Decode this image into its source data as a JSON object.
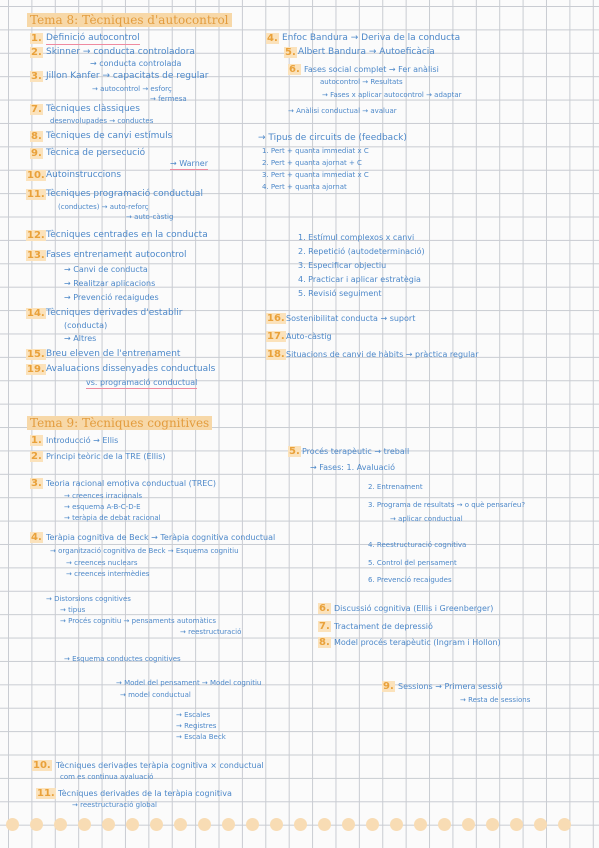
{
  "tema8": {
    "title": "Tema 8: Tècniques d'autocontrol",
    "left": [
      {
        "n": "1.",
        "text": "Definició autocontrol"
      },
      {
        "n": "2.",
        "text": "Skinner → conducta controladora"
      },
      {
        "sub": "→ conducta controlada"
      },
      {
        "n": "3.",
        "text": "Jillon Kanfer → capacitats de regular"
      },
      {
        "sub": "→ autocontrol → esforç"
      },
      {
        "sub": "→ fermesa"
      },
      {
        "n": "7.",
        "text": "Tècniques clàssiques"
      },
      {
        "sub": "desenvolupades → conductes"
      },
      {
        "n": "8.",
        "text": "Tècniques de canvi estímuls"
      },
      {
        "n": "9.",
        "text": "Tècnica de persecució"
      },
      {
        "sub": "→ Warner"
      },
      {
        "n": "10.",
        "text": "Autoinstruccions"
      },
      {
        "n": "11.",
        "text": "Tècniques programació conductual"
      },
      {
        "sub": "(conductes) → auto-reforç"
      },
      {
        "sub": "→ auto-càstig"
      },
      {
        "n": "12.",
        "text": "Tècniques centrades en la conducta"
      },
      {
        "n": "13.",
        "text": "Fases entrenament autocontrol"
      },
      {
        "sub": "→ Canvi de conducta"
      },
      {
        "sub": "→ Realitzar aplicacions"
      },
      {
        "sub": "→ Prevenció recaigudes"
      },
      {
        "n": "14.",
        "text": "Tècniques derivades d'establir"
      },
      {
        "sub": "(conducta)"
      },
      {
        "sub": "→ Altres"
      },
      {
        "n": "15.",
        "text": "Breu eleven de l'entrenament"
      },
      {
        "n": "19.",
        "text": "Avaluacions dissenyades conductuals"
      },
      {
        "sub": "vs. programació conductual"
      }
    ],
    "right": [
      {
        "n": "4.",
        "text": "Enfoc Bandura → Deriva de la conducta"
      },
      {
        "n": "5.",
        "text": "Albert Bandura → Autoeficàcia"
      },
      {
        "n": "6.",
        "text": "Fases social complet → Fer anàlisi"
      },
      {
        "sub": "autocontrol → Resultats"
      },
      {
        "sub": "→ Fases x aplicar autocontrol → adaptar"
      },
      {
        "sub": "→ Anàlisi conductual → avaluar"
      },
      {
        "n": "",
        "text": "→ Tipus de circuits de (feedback)"
      },
      {
        "sub": "1. Pert + quanta immediat x C"
      },
      {
        "sub": "2. Pert + quanta ajornat + C"
      },
      {
        "sub": "3. Pert + quanta immediat x C"
      },
      {
        "sub": "4. Pert + quanta ajornat"
      },
      {
        "sub": "1. Estímul complexos x canvi"
      },
      {
        "sub": "2. Repetició (autodeterminació)"
      },
      {
        "sub": "3. Especificar objectiu"
      },
      {
        "sub": "4. Practicar i aplicar estratègia"
      },
      {
        "sub": "5. Revisió seguiment"
      },
      {
        "n": "16.",
        "text": "Sostenibilitat conducta → suport"
      },
      {
        "n": "17.",
        "text": "Auto-càstig"
      },
      {
        "n": "18.",
        "text": "Situacions de canvi de hàbits → pràctica regular"
      }
    ]
  },
  "tema9": {
    "title": "Tema 9: Tècniques cognitives",
    "left": [
      {
        "n": "1.",
        "text": "Introducció → Ellis"
      },
      {
        "n": "2.",
        "text": "Principi teòric de la TRE (Ellis)"
      },
      {
        "n": "3.",
        "text": "Teoria racional emotiva conductual (TREC)"
      },
      {
        "sub": "→ creences irracionals"
      },
      {
        "sub": "→ esquema A-B-C-D-E"
      },
      {
        "sub": "→ teràpia de debat racional"
      },
      {
        "n": "4.",
        "text": "Teràpia cognitiva de Beck → Teràpia cognitiva conductual"
      },
      {
        "sub": "→ organització cognitiva de Beck → Esquema cognitiu"
      },
      {
        "sub": "→ creences nuclears"
      },
      {
        "sub": "→ creences intermèdies"
      },
      {
        "sub": "→ Distorsions cognitives"
      },
      {
        "sub": "→ tipus"
      },
      {
        "sub": "→ Procés cognitiu → pensaments automàtics"
      },
      {
        "sub": "→ reestructuració"
      },
      {
        "sub": "→ Esquema conductes cognitives"
      },
      {
        "sub": "→ Model del pensament → Model cognitiu"
      },
      {
        "sub": "→ model conductual"
      },
      {
        "sub": "→ Escales"
      },
      {
        "sub": "→ Registres"
      },
      {
        "sub": "→ Escala Beck"
      },
      {
        "n": "10.",
        "text": "Tècniques derivades teràpia cognitiva × conductual"
      },
      {
        "sub": "com es continua avaluació"
      },
      {
        "n": "11.",
        "text": "Tècniques derivades de la teràpia cognitiva"
      },
      {
        "sub": "→ reestructuració global"
      }
    ],
    "right": [
      {
        "n": "5.",
        "text": "Procés terapèutic → treball"
      },
      {
        "sub": "→ Fases: 1. Avaluació"
      },
      {
        "sub": "2. Entrenament"
      },
      {
        "sub": "3. Programa de resultats → o què pensaríeu?"
      },
      {
        "sub": "→ aplicar conductual"
      },
      {
        "sub": "4. Reestructuració cognitiva"
      },
      {
        "sub": "5. Control del pensament"
      },
      {
        "sub": "6. Prevenció recaigudes"
      },
      {
        "n": "6.",
        "text": "Discussió cognitiva (Ellis i Greenberger)"
      },
      {
        "n": "7.",
        "text": "Tractament de depressió"
      },
      {
        "n": "8.",
        "text": "Model procés terapèutic (Ingram i Hollon)"
      },
      {
        "n": "9.",
        "text": "Sessions → Primera sessió"
      },
      {
        "sub": "→ Resta de sessions"
      }
    ]
  }
}
